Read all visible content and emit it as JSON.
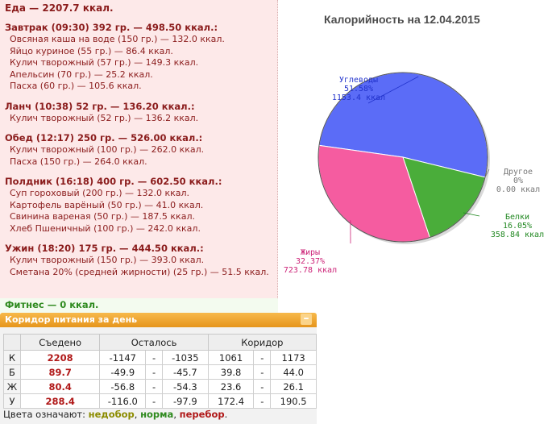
{
  "food": {
    "total": "Еда — 2207.7 ккал.",
    "meals": [
      {
        "title": "Завтрак (09:30) 392 гр. — 498.50 ккал.:",
        "items": [
          "Овсяная каша на воде (150 гр.) — 132.0 ккал.",
          "Яйцо куриное (55 гр.) — 86.4 ккал.",
          "Кулич творожный (57 гр.) — 149.3 ккал.",
          "Апельсин (70 гр.) — 25.2 ккал.",
          "Пасха (60 гр.) — 105.6 ккал."
        ]
      },
      {
        "title": "Ланч (10:38) 52 гр. — 136.20 ккал.:",
        "items": [
          "Кулич творожный (52 гр.) — 136.2 ккал."
        ]
      },
      {
        "title": "Обед (12:17) 250 гр. — 526.00 ккал.:",
        "items": [
          "Кулич творожный (100 гр.) — 262.0 ккал.",
          "Пасха (150 гр.) — 264.0 ккал."
        ]
      },
      {
        "title": "Полдник (16:18) 400 гр. — 602.50 ккал.:",
        "items": [
          "Суп гороховый (200 гр.) — 132.0 ккал.",
          "Картофель варёный (50 гр.) — 41.0 ккал.",
          "Свинина вареная (50 гр.) — 187.5 ккал.",
          "Хлеб Пшеничный (100 гр.) — 242.0 ккал."
        ]
      },
      {
        "title": "Ужин (18:20) 175 гр. — 444.50 ккал.:",
        "items": [
          "Кулич творожный (150 гр.) — 393.0 ккал.",
          "Сметана 20% (средней жирности) (25 гр.) — 51.5 ккал."
        ]
      }
    ]
  },
  "fitness": "Фитнес — 0 ккал.",
  "corridor": {
    "title": "Коридор питания за день",
    "collapse_label": "–",
    "headers": {
      "eaten": "Съедено",
      "left": "Осталось",
      "corridor": "Коридор"
    },
    "rows": [
      {
        "label": "К",
        "eaten": "2208",
        "left_min": "-1147",
        "left_max": "-1035",
        "corr_min": "1061",
        "corr_max": "1173"
      },
      {
        "label": "Б",
        "eaten": "89.7",
        "left_min": "-49.9",
        "left_max": "-45.7",
        "corr_min": "39.8",
        "corr_max": "44.0"
      },
      {
        "label": "Ж",
        "eaten": "80.4",
        "left_min": "-56.8",
        "left_max": "-54.3",
        "corr_min": "23.6",
        "corr_max": "26.1"
      },
      {
        "label": "У",
        "eaten": "288.4",
        "left_min": "-116.0",
        "left_max": "-97.9",
        "corr_min": "172.4",
        "corr_max": "190.5"
      }
    ],
    "dash": "-"
  },
  "legend": {
    "prefix": "Цвета означают:",
    "under": "недобор",
    "norm": "норма",
    "over": "перебор",
    "sep": ", ",
    "end": "."
  },
  "chart": {
    "title": "Калорийность на 12.04.2015",
    "slices": [
      {
        "name": "Углеводы",
        "pct": "51.58%",
        "kcal": "1153.4 ккал",
        "value": 1153.4,
        "color": "#5b6cf7"
      },
      {
        "name": "Другое",
        "pct": "0%",
        "kcal": "0.00 ккал",
        "value": 0,
        "color": "#bbbbbb"
      },
      {
        "name": "Белки",
        "pct": "16.05%",
        "kcal": "358.84 ккал",
        "value": 358.84,
        "color": "#4aad3a"
      },
      {
        "name": "Жиры",
        "pct": "32.37%",
        "kcal": "723.78 ккал",
        "value": 723.78,
        "color": "#f55ca0"
      }
    ]
  },
  "chart_data": {
    "type": "pie",
    "title": "Калорийность на 12.04.2015",
    "labels": [
      "Углеводы",
      "Другое",
      "Белки",
      "Жиры"
    ],
    "values": [
      1153.4,
      0,
      358.84,
      723.78
    ],
    "percents": [
      51.58,
      0,
      16.05,
      32.37
    ]
  }
}
